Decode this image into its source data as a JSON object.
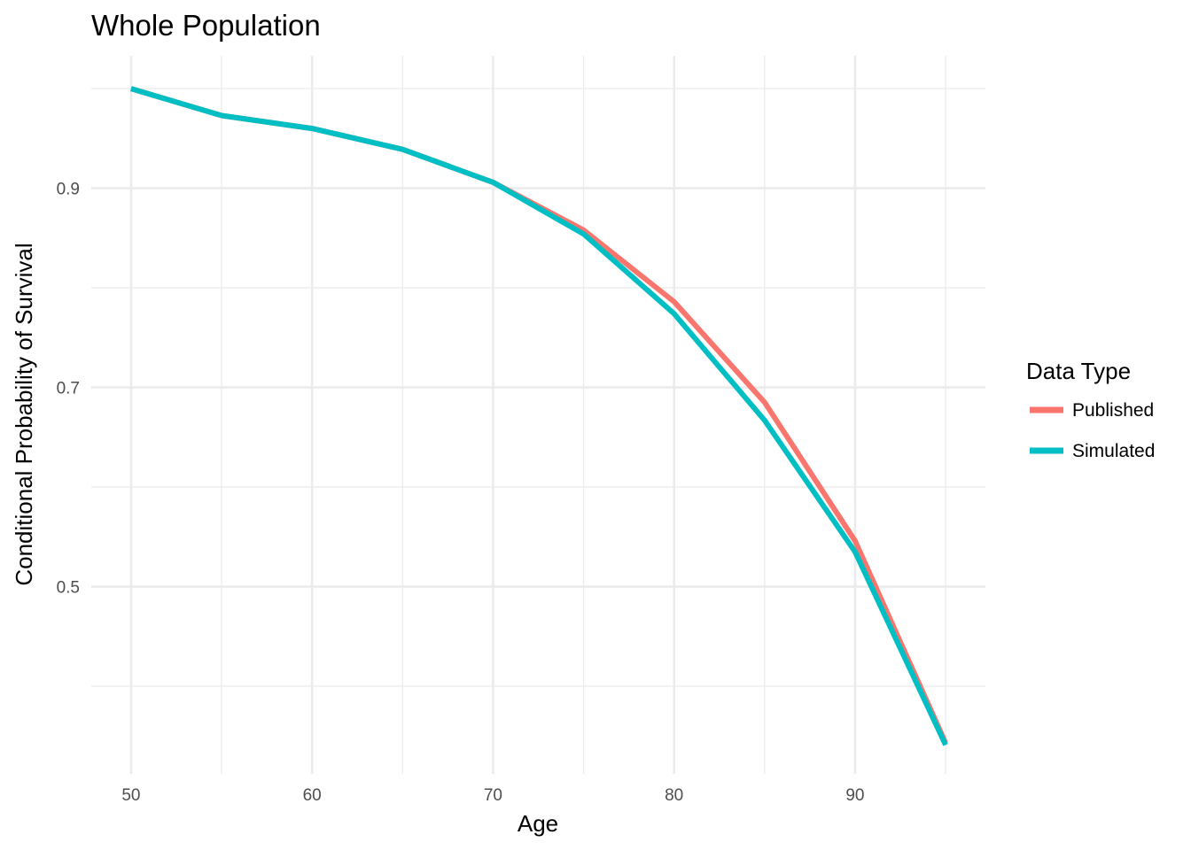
{
  "chart_data": {
    "type": "line",
    "title": "Whole Population",
    "xlabel": "Age",
    "ylabel": "Conditional Probability of Survival",
    "x": [
      50,
      55,
      60,
      65,
      70,
      75,
      80,
      85,
      90,
      95
    ],
    "xticks": [
      50,
      60,
      70,
      80,
      90
    ],
    "yticks": [
      0.5,
      0.7,
      0.9
    ],
    "xlim": [
      47.8,
      97.2
    ],
    "ylim": [
      0.312,
      1.033
    ],
    "grid": true,
    "legend": {
      "title": "Data Type",
      "position": "right"
    },
    "series": [
      {
        "name": "Published",
        "color": "#F8766D",
        "values": [
          1.0,
          0.973,
          0.96,
          0.939,
          0.906,
          0.858,
          0.786,
          0.685,
          0.546,
          0.343
        ]
      },
      {
        "name": "Simulated",
        "color": "#00BFC4",
        "values": [
          1.0,
          0.973,
          0.96,
          0.939,
          0.906,
          0.854,
          0.774,
          0.667,
          0.535,
          0.341
        ]
      }
    ]
  }
}
